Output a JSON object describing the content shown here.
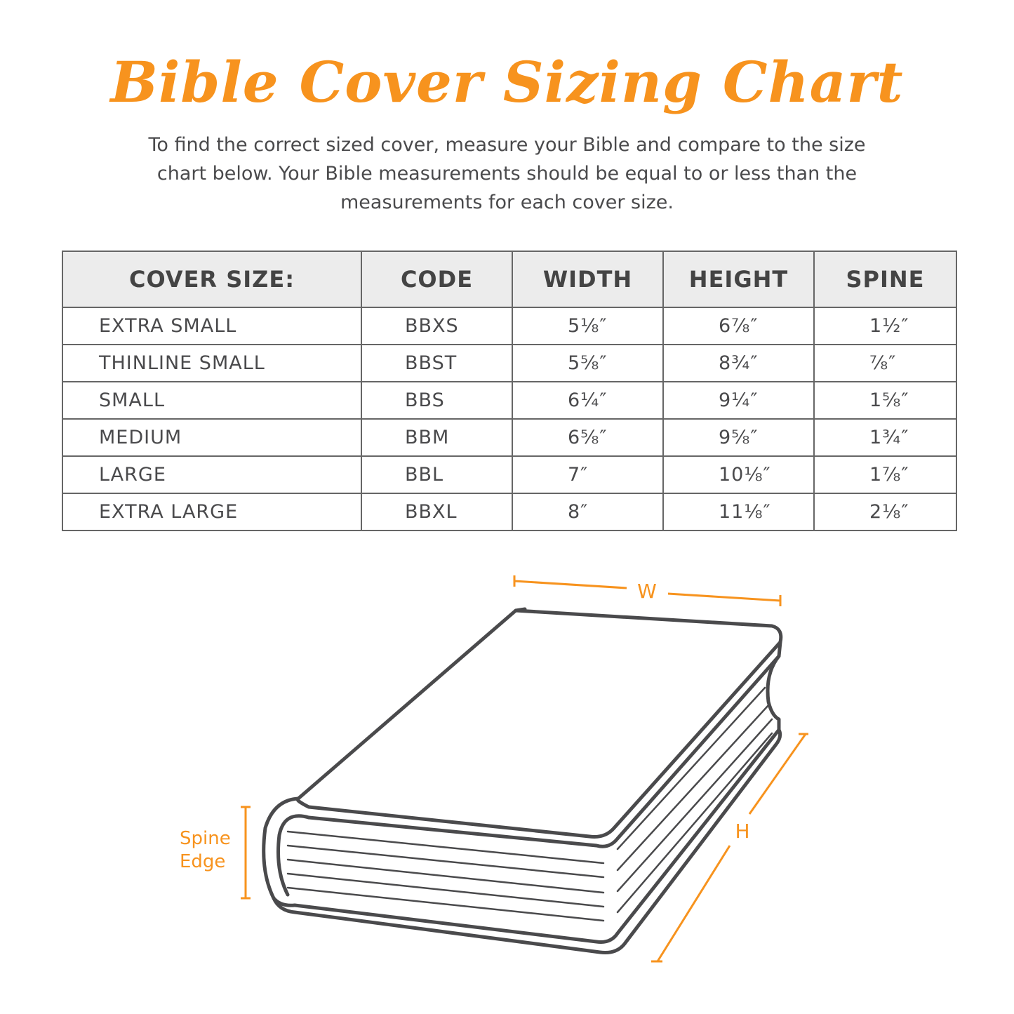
{
  "title": "Bible Cover Sizing Chart",
  "intro": "To find the correct sized cover, measure your Bible and compare to the size chart below. Your Bible measurements should be equal to or less than the measurements for each cover size.",
  "table": {
    "headers": [
      "COVER SIZE:",
      "CODE",
      "WIDTH",
      "HEIGHT",
      "SPINE"
    ],
    "rows": [
      [
        "EXTRA SMALL",
        "BBXS",
        "5⅛″",
        "6⅞″",
        "1½″"
      ],
      [
        "THINLINE SMALL",
        "BBST",
        "5⅝″",
        "8¾″",
        "⅞″"
      ],
      [
        "SMALL",
        "BBS",
        "6¼″",
        "9¼″",
        "1⅝″"
      ],
      [
        "MEDIUM",
        "BBM",
        "6⅝″",
        "9⅝″",
        "1¾″"
      ],
      [
        "LARGE",
        "BBL",
        "7″",
        "10⅛″",
        "1⅞″"
      ],
      [
        "EXTRA LARGE",
        "BBXL",
        "8″",
        "11⅛″",
        "2⅛″"
      ]
    ]
  },
  "diagram": {
    "width_label": "W",
    "height_label": "H",
    "spine_label_1": "Spine",
    "spine_label_2": "Edge"
  },
  "colors": {
    "accent": "#f7931e",
    "text": "#4a4a4c",
    "header_bg": "#ececec"
  }
}
